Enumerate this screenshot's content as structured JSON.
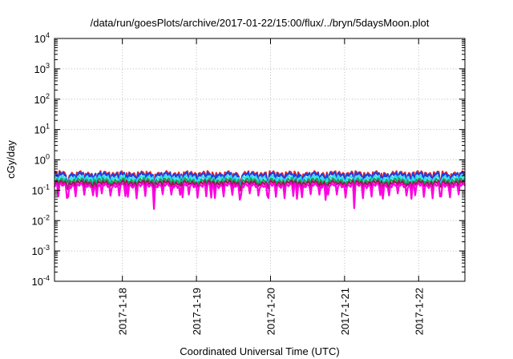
{
  "chart_data": {
    "type": "line",
    "title": "/data/run/goesPlots/archive/2017-01-22/15:00/flux/../bryn/5daysMoon.plot",
    "xlabel": "Coordinated Universal Time (UTC)",
    "ylabel": "cGy/day",
    "y_scale": "log",
    "ylim": [
      0.0001,
      10000
    ],
    "y_ticks": [
      {
        "value": 0.0001,
        "base": "10",
        "exp": "-4"
      },
      {
        "value": 0.001,
        "base": "10",
        "exp": "-3"
      },
      {
        "value": 0.01,
        "base": "10",
        "exp": "-2"
      },
      {
        "value": 0.1,
        "base": "10",
        "exp": "-1"
      },
      {
        "value": 1,
        "base": "10",
        "exp": "0"
      },
      {
        "value": 10,
        "base": "10",
        "exp": "1"
      },
      {
        "value": 100,
        "base": "10",
        "exp": "2"
      },
      {
        "value": 1000,
        "base": "10",
        "exp": "3"
      },
      {
        "value": 10000,
        "base": "10",
        "exp": "4"
      }
    ],
    "x_start": "2017-01-17T02:00",
    "x_end": "2017-01-22T15:00",
    "x_ticks": [
      {
        "date": "2017-01-18T00:00",
        "label": "2017-1-18"
      },
      {
        "date": "2017-01-19T00:00",
        "label": "2017-1-19"
      },
      {
        "date": "2017-01-20T00:00",
        "label": "2017-1-20"
      },
      {
        "date": "2017-01-21T00:00",
        "label": "2017-1-21"
      },
      {
        "date": "2017-01-22T00:00",
        "label": "2017-1-22"
      }
    ],
    "grid": true,
    "series": [
      {
        "color": "#e8232d",
        "base": 0.36,
        "dip": 0.55
      },
      {
        "color": "#1f3fe0",
        "base": 0.33,
        "dip": 0.5
      },
      {
        "color": "#2ee0f0",
        "base": 0.26,
        "dip": 0.6
      },
      {
        "color": "#17a35a",
        "base": 0.21,
        "dip": 0.7
      },
      {
        "color": "#a0125a",
        "base": 0.175,
        "dip": 0.75
      },
      {
        "color": "#ff00e0",
        "base": 0.145,
        "dip": 0.45
      }
    ]
  }
}
